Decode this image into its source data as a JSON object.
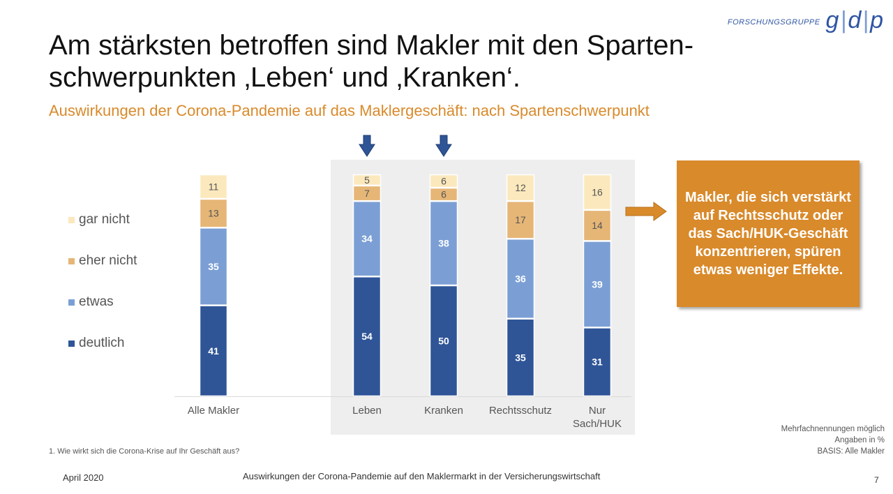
{
  "logo": {
    "small_text": "FORSCHUNGSGRUPPE",
    "letters": [
      "g",
      "d",
      "p"
    ]
  },
  "slide": {
    "title_line1": "Am stärksten betroffen sind Makler mit den Sparten-",
    "title_line2": "schwerpunkten ‚Leben‘ und ‚Kranken‘.",
    "subtitle": "Auswirkungen der Corona-Pandemie auf das Maklergeschäft: nach Spartenschwerpunkt"
  },
  "callout": {
    "text": "Makler, die sich verstärkt auf Rechtsschutz oder das Sach/HUK-Geschäft konzentrieren, spüren etwas weniger Effekte."
  },
  "notes": {
    "line1": "Mehrfachnennungen möglich",
    "line2": "Angaben in %",
    "line3": "BASIS: Alle Makler"
  },
  "footnote": "1. Wie wirkt sich die Corona-Krise auf Ihr Geschäft aus?",
  "footer": {
    "date": "April 2020",
    "center": "Auswirkungen der Corona-Pandemie auf den Maklermarkt in der Versicherungswirtschaft",
    "page": "7"
  },
  "colors": {
    "deutlich": "#2f5597",
    "etwas": "#7b9fd5",
    "eher_nicht": "#e6b677",
    "gar_nicht": "#fbe9bd",
    "accent": "#d98a2b",
    "arrow_blue": "#2f5597",
    "highlight_box": "#eeeeee"
  },
  "chart_data": {
    "type": "bar",
    "stacked": true,
    "categories": [
      [
        "Alle Makler"
      ],
      [
        "Leben"
      ],
      [
        "Kranken"
      ],
      [
        "Rechtsschutz"
      ],
      [
        "Nur",
        "Sach/HUK"
      ]
    ],
    "series": [
      {
        "name": "deutlich",
        "key": "deutlich",
        "values": [
          41,
          54,
          50,
          35,
          31
        ]
      },
      {
        "name": "etwas",
        "key": "etwas",
        "values": [
          35,
          34,
          38,
          36,
          39
        ]
      },
      {
        "name": "eher nicht",
        "key": "eher_nicht",
        "values": [
          13,
          7,
          6,
          17,
          14
        ]
      },
      {
        "name": "gar nicht",
        "key": "gar_nicht",
        "values": [
          11,
          5,
          6,
          12,
          16
        ]
      }
    ],
    "legend_order": [
      "gar nicht",
      "eher nicht",
      "etwas",
      "deutlich"
    ],
    "highlighted_categories": [
      "Leben",
      "Kranken"
    ],
    "unit": "%"
  }
}
